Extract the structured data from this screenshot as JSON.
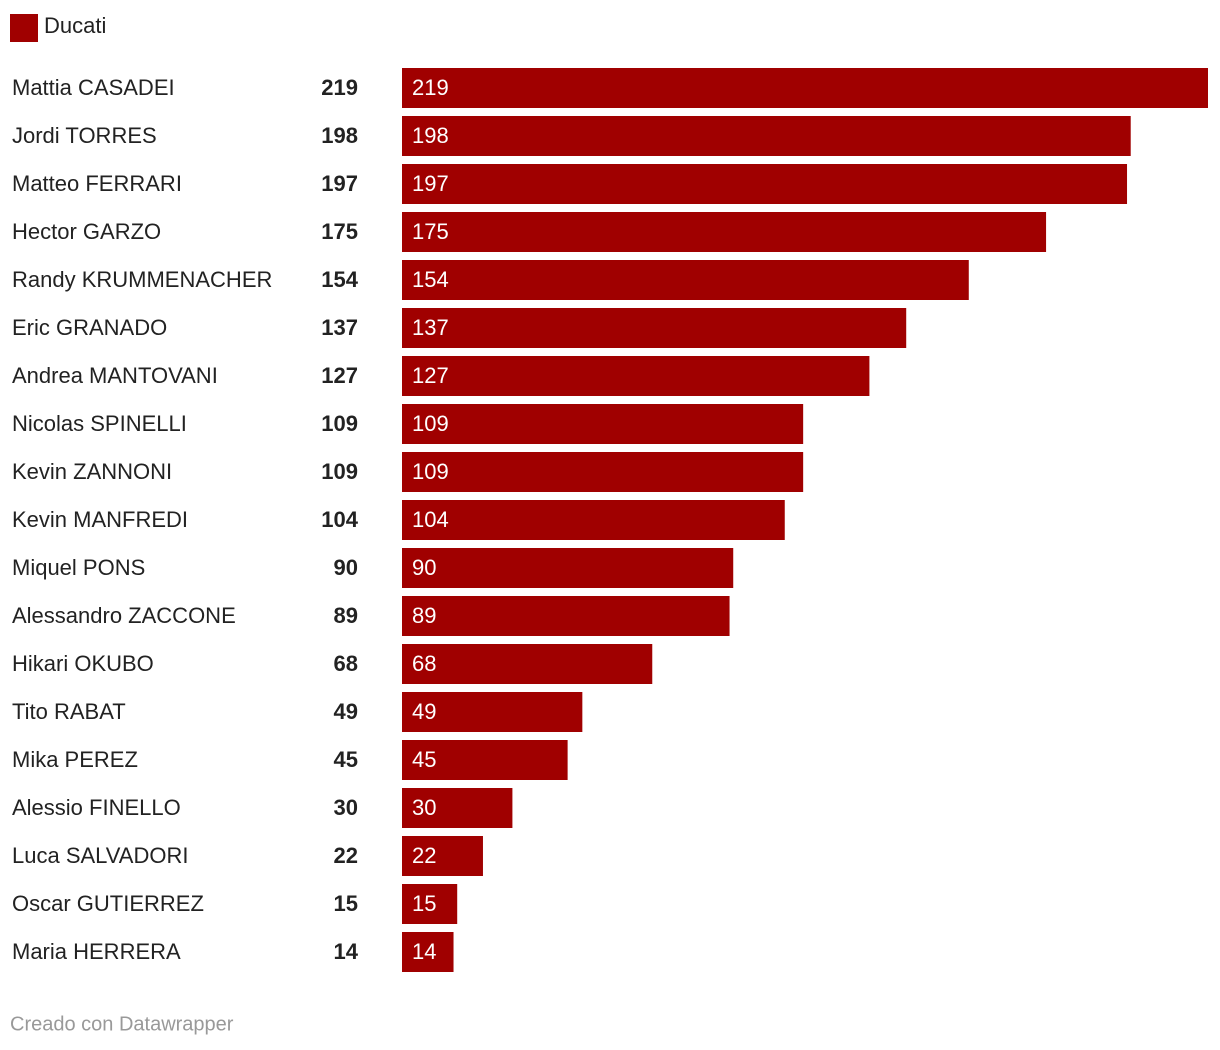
{
  "chart_data": {
    "type": "bar",
    "orientation": "horizontal",
    "categories": [
      "Mattia CASADEI",
      "Jordi TORRES",
      "Matteo FERRARI",
      "Hector GARZO",
      "Randy KRUMMENACHER",
      "Eric GRANADO",
      "Andrea MANTOVANI",
      "Nicolas SPINELLI",
      "Kevin ZANNONI",
      "Kevin MANFREDI",
      "Miquel PONS",
      "Alessandro ZACCONE",
      "Hikari OKUBO",
      "Tito RABAT",
      "Mika PEREZ",
      "Alessio FINELLO",
      "Luca SALVADORI",
      "Oscar GUTIERREZ",
      "Maria HERRERA"
    ],
    "series": [
      {
        "name": "Ducati",
        "color": "#a00000",
        "values": [
          219,
          198,
          197,
          175,
          154,
          137,
          127,
          109,
          109,
          104,
          90,
          89,
          68,
          49,
          45,
          30,
          22,
          15,
          14
        ]
      }
    ],
    "legend": "top-left",
    "credit": "Creado con Datawrapper"
  }
}
